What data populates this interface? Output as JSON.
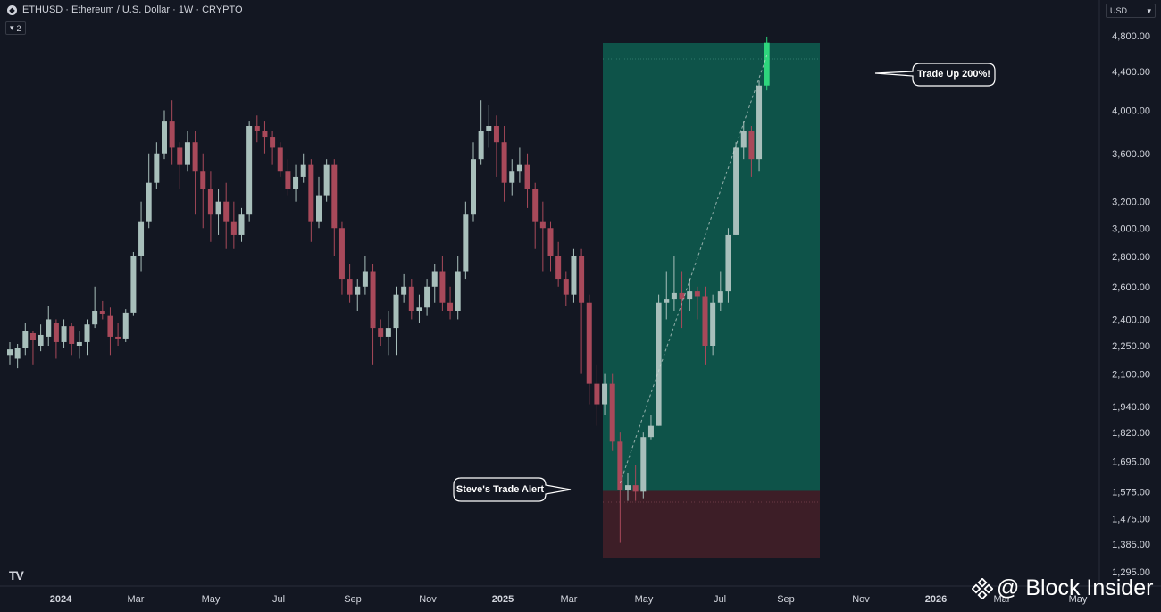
{
  "header": {
    "symbol_line": "ETHUSD · Ethereum / U.S. Dollar · 1W · CRYPTO",
    "eth_icon": "ethereum-icon",
    "indicator_count": "2",
    "currency": "USD"
  },
  "brand": {
    "tv_logo": "TV",
    "watermark": "@ Block Insider",
    "watermark_icon": "binance-diamond-icon"
  },
  "annotations": {
    "entry_callout": "Steve's Trade Alert",
    "target_callout": "Trade Up 200%!"
  },
  "colors": {
    "background": "#131722",
    "up_candle": "#a8bfbb",
    "down_candle": "#a8495a",
    "profit_zone": "#0e5349",
    "loss_zone": "#3d1e27",
    "last_candle": "#2ed67d"
  },
  "chart_data": {
    "type": "candlestick",
    "symbol": "ETHUSD",
    "interval": "1W",
    "y_scale": "log",
    "ylim": [
      1250,
      4950
    ],
    "y_ticks": [
      "4,800.00",
      "4,400.00",
      "4,000.00",
      "3,600.00",
      "3,200.00",
      "3,000.00",
      "2,800.00",
      "2,600.00",
      "2,400.00",
      "2,250.00",
      "2,100.00",
      "1,940.00",
      "1,820.00",
      "1,695.00",
      "1,575.00",
      "1,475.00",
      "1,385.00",
      "1,295.00"
    ],
    "x_ticks": [
      "2024",
      "Mar",
      "May",
      "Jul",
      "Sep",
      "Nov",
      "2025",
      "Mar",
      "May",
      "Jul",
      "Sep",
      "Nov",
      "2026",
      "Mar",
      "May"
    ],
    "long_position": {
      "entry": 1578,
      "target": 4900,
      "stop": 1330,
      "start_week": 2025.2,
      "end_week": 2025.8
    },
    "candles": [
      [
        2200,
        2230,
        2270,
        2150
      ],
      [
        2180,
        2240,
        2260,
        2130
      ],
      [
        2240,
        2330,
        2380,
        2200
      ],
      [
        2320,
        2280,
        2330,
        2150
      ],
      [
        2250,
        2310,
        2370,
        2220
      ],
      [
        2300,
        2400,
        2480,
        2250
      ],
      [
        2380,
        2270,
        2400,
        2180
      ],
      [
        2270,
        2360,
        2400,
        2240
      ],
      [
        2360,
        2260,
        2380,
        2200
      ],
      [
        2250,
        2270,
        2330,
        2180
      ],
      [
        2270,
        2370,
        2400,
        2200
      ],
      [
        2370,
        2450,
        2600,
        2350
      ],
      [
        2450,
        2430,
        2510,
        2400
      ],
      [
        2420,
        2300,
        2470,
        2200
      ],
      [
        2300,
        2290,
        2380,
        2250
      ],
      [
        2290,
        2440,
        2460,
        2270
      ],
      [
        2440,
        2800,
        2830,
        2420
      ],
      [
        2800,
        3050,
        3200,
        2700
      ],
      [
        3050,
        3350,
        3600,
        3000
      ],
      [
        3350,
        3600,
        3700,
        3300
      ],
      [
        3600,
        3900,
        4000,
        3550
      ],
      [
        3900,
        3650,
        4100,
        3500
      ],
      [
        3650,
        3500,
        3700,
        3300
      ],
      [
        3500,
        3700,
        3800,
        3450
      ],
      [
        3700,
        3450,
        3800,
        3100
      ],
      [
        3450,
        3300,
        3600,
        3000
      ],
      [
        3300,
        3100,
        3450,
        2900
      ],
      [
        3100,
        3200,
        3300,
        2950
      ],
      [
        3200,
        3050,
        3350,
        2850
      ],
      [
        3050,
        2950,
        3200,
        2850
      ],
      [
        2950,
        3100,
        3150,
        2900
      ],
      [
        3100,
        3850,
        3900,
        3050
      ],
      [
        3850,
        3800,
        3950,
        3700
      ],
      [
        3800,
        3750,
        3900,
        3600
      ],
      [
        3750,
        3650,
        3800,
        3500
      ],
      [
        3650,
        3450,
        3700,
        3400
      ],
      [
        3450,
        3300,
        3550,
        3250
      ],
      [
        3300,
        3400,
        3500,
        3200
      ],
      [
        3400,
        3500,
        3600,
        3350
      ],
      [
        3500,
        3050,
        3550,
        2900
      ],
      [
        3050,
        3250,
        3400,
        3000
      ],
      [
        3250,
        3500,
        3550,
        3200
      ],
      [
        3500,
        3000,
        3550,
        2800
      ],
      [
        3000,
        2650,
        3050,
        2550
      ],
      [
        2650,
        2550,
        2750,
        2500
      ],
      [
        2550,
        2600,
        2650,
        2450
      ],
      [
        2600,
        2700,
        2800,
        2550
      ],
      [
        2700,
        2350,
        2750,
        2150
      ],
      [
        2350,
        2300,
        2400,
        2250
      ],
      [
        2300,
        2350,
        2450,
        2200
      ],
      [
        2350,
        2550,
        2600,
        2200
      ],
      [
        2550,
        2600,
        2680,
        2500
      ],
      [
        2600,
        2450,
        2650,
        2400
      ],
      [
        2450,
        2470,
        2550,
        2380
      ],
      [
        2470,
        2600,
        2650,
        2420
      ],
      [
        2600,
        2700,
        2750,
        2500
      ],
      [
        2700,
        2500,
        2800,
        2450
      ],
      [
        2500,
        2450,
        2600,
        2400
      ],
      [
        2450,
        2700,
        2800,
        2400
      ],
      [
        2700,
        3100,
        3200,
        2650
      ],
      [
        3100,
        3550,
        3700,
        3050
      ],
      [
        3550,
        3800,
        4100,
        3500
      ],
      [
        3800,
        3850,
        4050,
        3650
      ],
      [
        3850,
        3700,
        3950,
        3400
      ],
      [
        3700,
        3350,
        3850,
        3200
      ],
      [
        3350,
        3450,
        3550,
        3250
      ],
      [
        3450,
        3500,
        3650,
        3350
      ],
      [
        3500,
        3300,
        3600,
        3150
      ],
      [
        3300,
        3050,
        3350,
        2850
      ],
      [
        3050,
        3000,
        3200,
        2700
      ],
      [
        3000,
        2800,
        3050,
        2700
      ],
      [
        2800,
        2650,
        2900,
        2600
      ],
      [
        2650,
        2550,
        2700,
        2480
      ],
      [
        2550,
        2800,
        2850,
        2500
      ],
      [
        2800,
        2500,
        2850,
        2100
      ],
      [
        2500,
        2050,
        2550,
        1950
      ],
      [
        2050,
        1950,
        2150,
        1850
      ],
      [
        1950,
        2050,
        2100,
        1900
      ],
      [
        2050,
        1780,
        2100,
        1740
      ],
      [
        1780,
        1580,
        1820,
        1390
      ],
      [
        1580,
        1600,
        1650,
        1540
      ],
      [
        1600,
        1575,
        1680,
        1540
      ],
      [
        1575,
        1800,
        1820,
        1550
      ],
      [
        1800,
        1850,
        1900,
        1790
      ],
      [
        1850,
        2500,
        2550,
        1850
      ],
      [
        2500,
        2520,
        2700,
        2400
      ],
      [
        2520,
        2560,
        2800,
        2450
      ],
      [
        2560,
        2520,
        2700,
        2350
      ],
      [
        2520,
        2570,
        2650,
        2450
      ],
      [
        2570,
        2540,
        2600,
        2400
      ],
      [
        2540,
        2250,
        2600,
        2150
      ],
      [
        2250,
        2500,
        2550,
        2200
      ],
      [
        2500,
        2570,
        2700,
        2450
      ],
      [
        2570,
        2950,
        3000,
        2500
      ],
      [
        2950,
        3650,
        3700,
        2950
      ],
      [
        3650,
        3800,
        3900,
        3550
      ],
      [
        3800,
        3550,
        3850,
        3400
      ],
      [
        3550,
        4250,
        4300,
        3450
      ],
      [
        4250,
        4720,
        4790,
        4200
      ]
    ]
  }
}
